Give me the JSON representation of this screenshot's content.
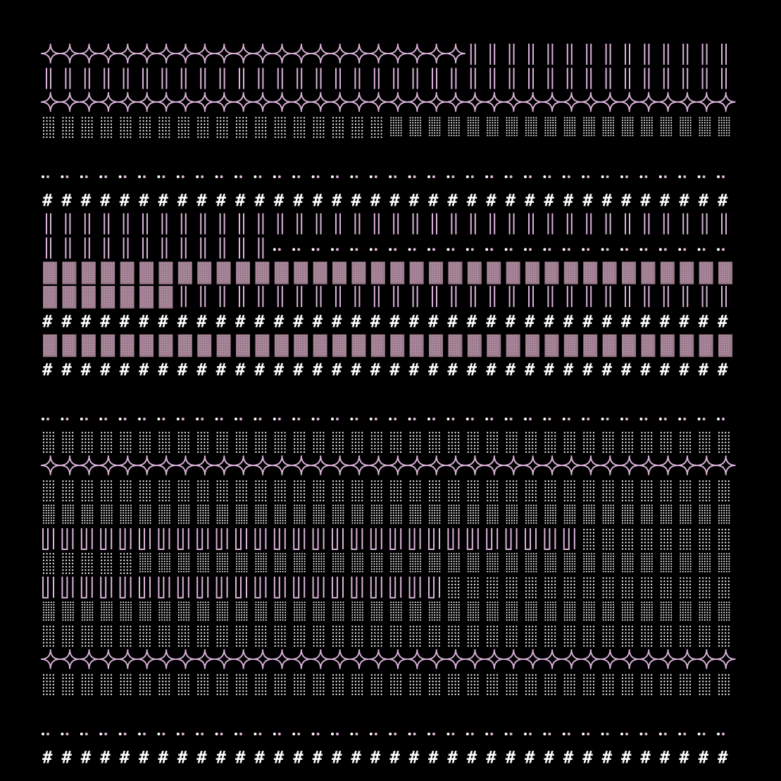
{
  "artwork": {
    "kind": "generative ascii-pattern grid",
    "background": "#000000",
    "colors": {
      "pink": "#dcb4dc",
      "white": "#ffffff",
      "mauve": "#9a7a8c"
    },
    "columns": 36,
    "glyph_legend": {
      "S": "star-curve (pink four-pointed curved star)",
      "P": "double pink vertical lines",
      "H": "white hash glyph #",
      "D": "small dot pair",
      "Q": "dot-matrix block (white dots)",
      "G": "dense dot-matrix block (white dots)",
      "F": "filled mauve stipple block",
      "U": "pink U-shaped bracket pair"
    },
    "rows": [
      {
        "segments": [
          {
            "glyph": "S",
            "count": 22
          },
          {
            "glyph": "P",
            "count": 14
          }
        ]
      },
      {
        "segments": [
          {
            "glyph": "P",
            "count": 36
          }
        ]
      },
      {
        "segments": [
          {
            "glyph": "S",
            "count": 36
          }
        ]
      },
      {
        "segments": [
          {
            "glyph": "Q",
            "count": 18
          },
          {
            "glyph": "G",
            "count": 18
          }
        ]
      },
      {
        "segments": []
      },
      {
        "segments": [
          {
            "glyph": "D",
            "count": 36
          }
        ]
      },
      {
        "segments": [
          {
            "glyph": "H",
            "count": 36
          }
        ]
      },
      {
        "segments": [
          {
            "glyph": "P",
            "count": 36
          }
        ]
      },
      {
        "segments": [
          {
            "glyph": "P",
            "count": 12
          },
          {
            "glyph": "D",
            "count": 24
          }
        ]
      },
      {
        "segments": [
          {
            "glyph": "F",
            "count": 36
          }
        ]
      },
      {
        "segments": [
          {
            "glyph": "F",
            "count": 7
          },
          {
            "glyph": "P",
            "count": 29
          }
        ]
      },
      {
        "segments": [
          {
            "glyph": "H",
            "count": 36
          }
        ]
      },
      {
        "segments": [
          {
            "glyph": "F",
            "count": 36
          }
        ]
      },
      {
        "segments": [
          {
            "glyph": "H",
            "count": 36
          }
        ]
      },
      {
        "segments": []
      },
      {
        "segments": [
          {
            "glyph": "D",
            "count": 36
          }
        ]
      },
      {
        "segments": [
          {
            "glyph": "Q",
            "count": 36
          }
        ]
      },
      {
        "segments": [
          {
            "glyph": "S",
            "count": 36
          }
        ]
      },
      {
        "segments": [
          {
            "glyph": "Q",
            "count": 36
          }
        ]
      },
      {
        "segments": [
          {
            "glyph": "G",
            "count": 36
          }
        ]
      },
      {
        "segments": [
          {
            "glyph": "U",
            "count": 28
          },
          {
            "glyph": "Q",
            "count": 8
          }
        ]
      },
      {
        "segments": [
          {
            "glyph": "Q",
            "count": 5
          },
          {
            "glyph": "G",
            "count": 31
          }
        ]
      },
      {
        "segments": [
          {
            "glyph": "U",
            "count": 21
          },
          {
            "glyph": "Q",
            "count": 15
          }
        ]
      },
      {
        "segments": [
          {
            "glyph": "G",
            "count": 36
          }
        ]
      },
      {
        "segments": [
          {
            "glyph": "Q",
            "count": 36
          }
        ]
      },
      {
        "segments": [
          {
            "glyph": "S",
            "count": 36
          }
        ]
      },
      {
        "segments": [
          {
            "glyph": "Q",
            "count": 36
          }
        ]
      },
      {
        "segments": []
      },
      {
        "segments": [
          {
            "glyph": "D",
            "count": 36
          }
        ]
      },
      {
        "segments": [
          {
            "glyph": "H",
            "count": 36
          }
        ]
      }
    ]
  }
}
